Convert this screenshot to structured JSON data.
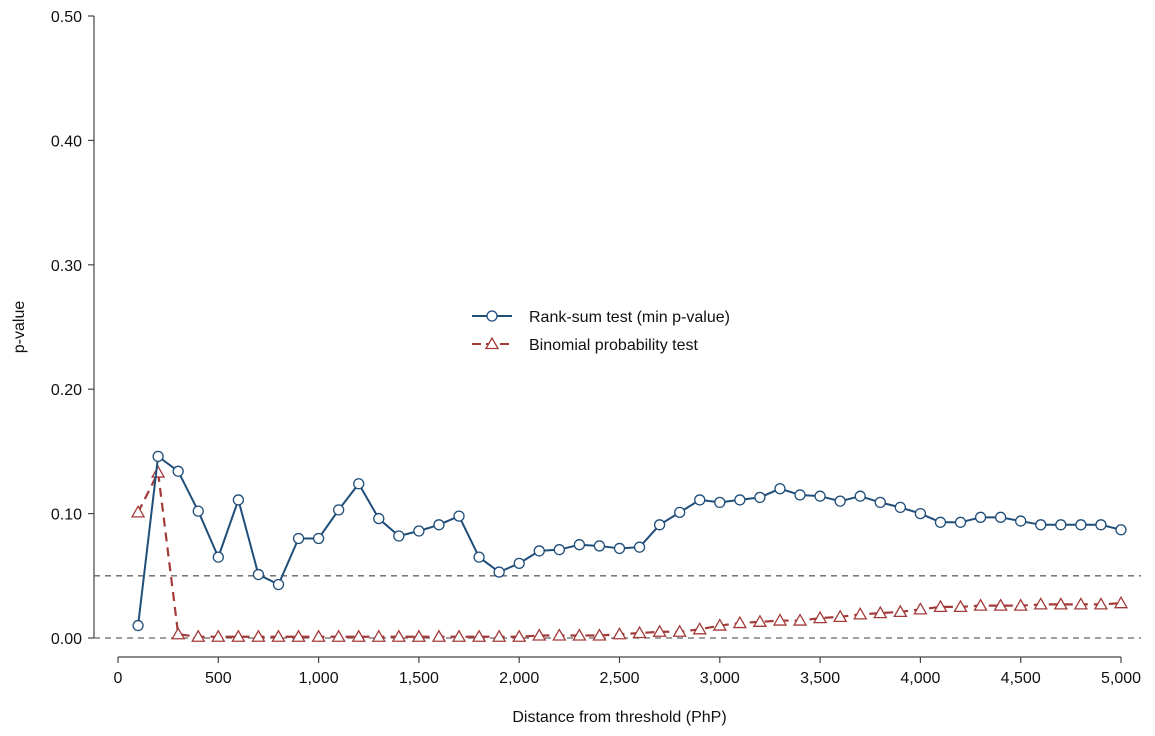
{
  "chart_data": {
    "type": "line",
    "title": "",
    "xlabel": "Distance from threshold (PhP)",
    "ylabel": "p-value",
    "xlim": [
      0,
      5000
    ],
    "ylim": [
      0,
      0.5
    ],
    "x_ticks": [
      0,
      500,
      1000,
      1500,
      2000,
      2500,
      3000,
      3500,
      4000,
      4500,
      5000
    ],
    "x_tick_labels": [
      "0",
      "500",
      "1,000",
      "1,500",
      "2,000",
      "2,500",
      "3,000",
      "3,500",
      "4,000",
      "4,500",
      "5,000"
    ],
    "y_ticks": [
      0,
      0.1,
      0.2,
      0.3,
      0.4,
      0.5
    ],
    "y_tick_labels": [
      "0.00",
      "0.10",
      "0.20",
      "0.30",
      "0.40",
      "0.50"
    ],
    "reference_lines": [
      0,
      0.05
    ],
    "grid": false,
    "legend_position": "center",
    "x": [
      100,
      200,
      300,
      400,
      500,
      600,
      700,
      800,
      900,
      1000,
      1100,
      1200,
      1300,
      1400,
      1500,
      1600,
      1700,
      1800,
      1900,
      2000,
      2100,
      2200,
      2300,
      2400,
      2500,
      2600,
      2700,
      2800,
      2900,
      3000,
      3100,
      3200,
      3300,
      3400,
      3500,
      3600,
      3700,
      3800,
      3900,
      4000,
      4100,
      4200,
      4300,
      4400,
      4500,
      4600,
      4700,
      4800,
      4900,
      5000
    ],
    "series": [
      {
        "name": "Rank-sum test (min p-value)",
        "color": "#1f4e79",
        "marker": "circle",
        "line_style": "solid",
        "values": [
          0.01,
          0.146,
          0.134,
          0.102,
          0.065,
          0.111,
          0.051,
          0.043,
          0.08,
          0.08,
          0.103,
          0.124,
          0.096,
          0.082,
          0.086,
          0.091,
          0.098,
          0.065,
          0.053,
          0.06,
          0.07,
          0.071,
          0.075,
          0.074,
          0.072,
          0.073,
          0.091,
          0.101,
          0.111,
          0.109,
          0.111,
          0.113,
          0.12,
          0.115,
          0.114,
          0.11,
          0.114,
          0.109,
          0.105,
          0.1,
          0.093,
          0.093,
          0.097,
          0.097,
          0.094,
          0.091,
          0.091,
          0.091,
          0.091,
          0.087
        ]
      },
      {
        "name": "Binomial probability test",
        "color": "#a33a3a",
        "marker": "triangle",
        "line_style": "dashed",
        "values": [
          0.101,
          0.133,
          0.003,
          0.001,
          0.001,
          0.001,
          0.001,
          0.001,
          0.001,
          0.001,
          0.001,
          0.001,
          0.001,
          0.001,
          0.001,
          0.001,
          0.001,
          0.001,
          0.001,
          0.001,
          0.002,
          0.002,
          0.002,
          0.002,
          0.003,
          0.004,
          0.005,
          0.005,
          0.007,
          0.01,
          0.012,
          0.013,
          0.014,
          0.014,
          0.016,
          0.017,
          0.019,
          0.02,
          0.021,
          0.023,
          0.025,
          0.025,
          0.026,
          0.026,
          0.026,
          0.027,
          0.027,
          0.027,
          0.027,
          0.028
        ]
      }
    ]
  }
}
